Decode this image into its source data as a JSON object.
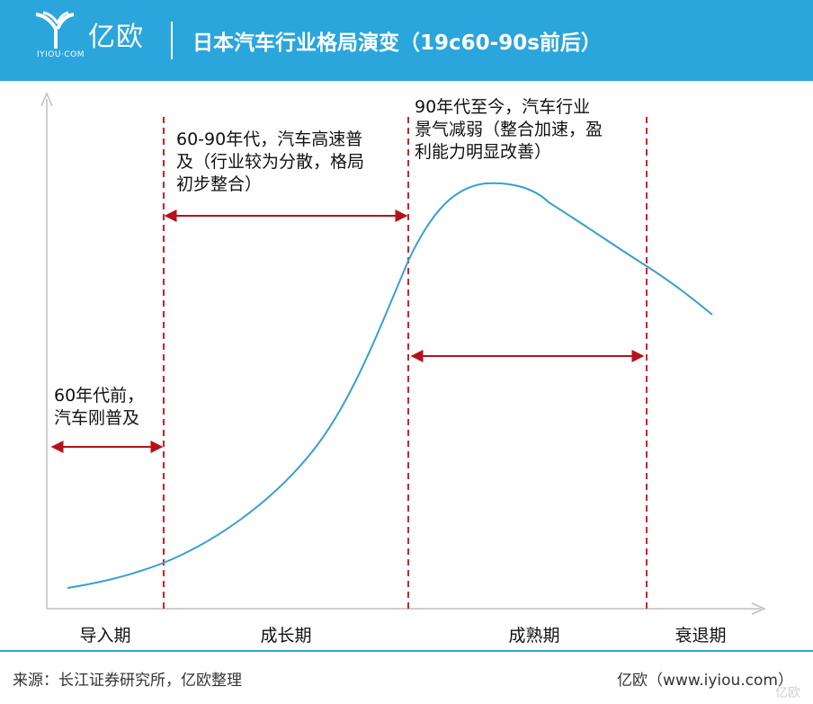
{
  "header": {
    "logo_text": "亿欧",
    "logo_sub": "IYIOU·COM",
    "title": "日本汽车行业格局演变（19c60-90s前后）"
  },
  "annotations": {
    "pre60": [
      "60年代前，",
      "汽车刚普及"
    ],
    "growth": [
      "60-90年代，汽车高速普",
      "及（行业较为分散，格局",
      "初步整合）"
    ],
    "mature": [
      "90年代至今，汽车行业",
      "景气减弱（整合加速，盈",
      "利能力明显改善）"
    ]
  },
  "stages": [
    "导入期",
    "成长期",
    "成熟期",
    "衰退期"
  ],
  "footer": {
    "source": "来源：长江证券研究所，亿欧整理",
    "site": "亿欧（www.iyiou.com）",
    "watermark": "亿欧"
  },
  "colors": {
    "header": "#2aa6dc",
    "curve": "#3a9fd0",
    "marker": "#b5121b",
    "axis": "#bdbdbd"
  },
  "icons": [
    "logo-icon",
    "arrow-double-icon"
  ]
}
